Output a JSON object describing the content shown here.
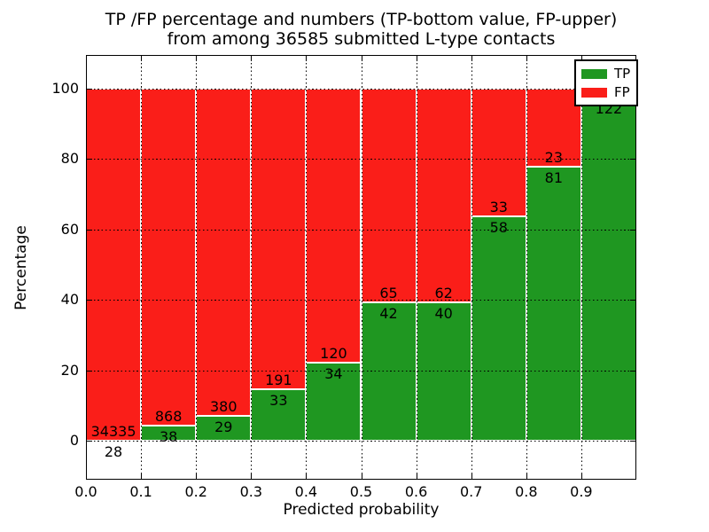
{
  "title": {
    "line1": "TP /FP percentage and numbers (TP-bottom value, FP-upper)",
    "line2": "from among 36585 submitted L-type contacts"
  },
  "chart_data": {
    "type": "bar",
    "stacked": true,
    "normalized_to_percent": true,
    "title": "TP /FP percentage and numbers (TP-bottom value, FP-upper) from among 36585 submitted L-type contacts",
    "xlabel": "Predicted probability",
    "ylabel": "Percentage",
    "xlim": [
      0.0,
      1.0
    ],
    "ylim": [
      -10.8,
      109.3
    ],
    "x_ticks": [
      "0.0",
      "0.1",
      "0.2",
      "0.3",
      "0.4",
      "0.5",
      "0.6",
      "0.7",
      "0.8",
      "0.9"
    ],
    "y_ticks": [
      0,
      20,
      40,
      60,
      80,
      100
    ],
    "grid": true,
    "grid_linestyle": "dotted",
    "legend_position": "upper-right",
    "legend": [
      {
        "label": "TP",
        "color": "#1f9721"
      },
      {
        "label": "FP",
        "color": "#fa1e19"
      }
    ],
    "bar_edge_color": "#ffffff",
    "total_submitted": 36585,
    "bars": [
      {
        "x_start": 0.0,
        "x_end": 0.1,
        "tp": 28,
        "fp": 34335,
        "tp_pct": 0.08
      },
      {
        "x_start": 0.1,
        "x_end": 0.2,
        "tp": 38,
        "fp": 868,
        "tp_pct": 4.2
      },
      {
        "x_start": 0.2,
        "x_end": 0.3,
        "tp": 29,
        "fp": 380,
        "tp_pct": 7.1
      },
      {
        "x_start": 0.3,
        "x_end": 0.4,
        "tp": 33,
        "fp": 191,
        "tp_pct": 14.7
      },
      {
        "x_start": 0.4,
        "x_end": 0.5,
        "tp": 34,
        "fp": 120,
        "tp_pct": 22.1
      },
      {
        "x_start": 0.5,
        "x_end": 0.6,
        "tp": 42,
        "fp": 65,
        "tp_pct": 39.3
      },
      {
        "x_start": 0.6,
        "x_end": 0.7,
        "tp": 40,
        "fp": 62,
        "tp_pct": 39.2
      },
      {
        "x_start": 0.7,
        "x_end": 0.8,
        "tp": 58,
        "fp": 33,
        "tp_pct": 63.7
      },
      {
        "x_start": 0.8,
        "x_end": 0.9,
        "tp": 81,
        "fp": 23,
        "tp_pct": 77.9
      },
      {
        "x_start": 0.9,
        "x_end": 1.0,
        "tp": 122,
        "fp": null,
        "tp_pct": 97.6
      }
    ]
  }
}
